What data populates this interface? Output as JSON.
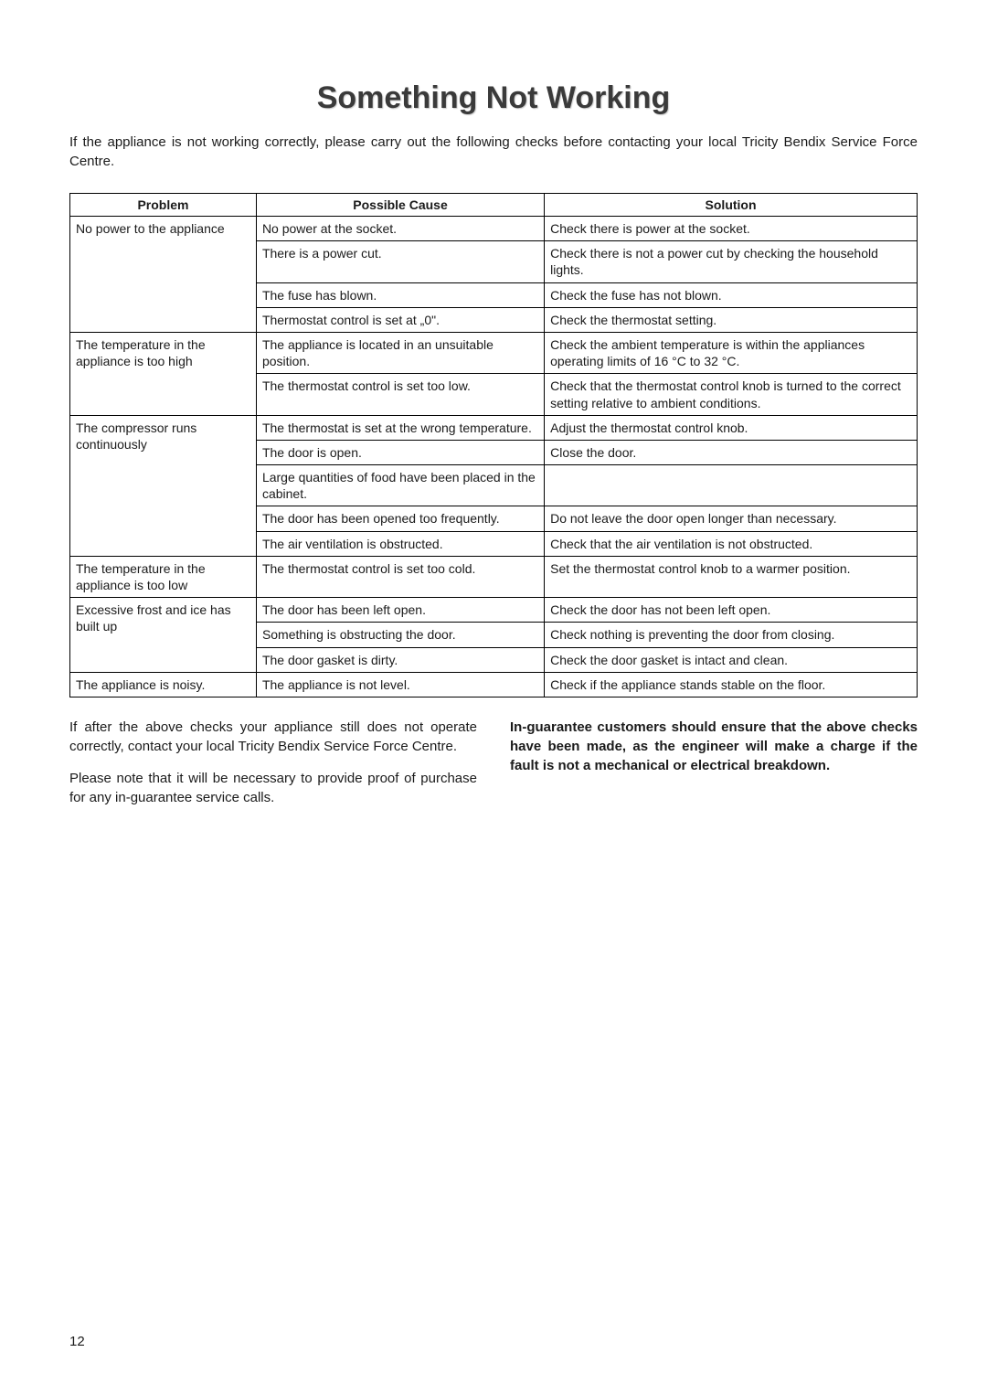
{
  "title": "Something Not Working",
  "intro": "If the appliance is not working correctly, please carry out the following checks before contacting your local Tricity Bendix Service Force Centre.",
  "table": {
    "headers": [
      "Problem",
      "Possible Cause",
      "Solution"
    ],
    "groups": [
      {
        "problem": "No power to the appliance",
        "rows": [
          {
            "cause": "No power at the socket.",
            "solution": "Check there is power at the socket."
          },
          {
            "cause": "There is a power cut.",
            "solution": "Check there is not a power cut by checking the household lights."
          },
          {
            "cause": "The fuse has blown.",
            "solution": "Check the fuse has not blown."
          },
          {
            "cause": "Thermostat control is set at „0\".",
            "solution": "Check the thermostat setting."
          }
        ]
      },
      {
        "problem": "The temperature in the appliance is too high",
        "rows": [
          {
            "cause": "The appliance is located in an unsuitable position.",
            "solution": "Check the ambient temperature is within the appliances operating limits of 16 °C to 32 °C."
          },
          {
            "cause": "The thermostat control is set too low.",
            "solution": "Check that the thermostat control knob is turned to the correct setting relative to ambient conditions."
          }
        ]
      },
      {
        "problem": "The compressor runs continuously",
        "rows": [
          {
            "cause": "The thermostat is set at the wrong temperature.",
            "solution": "Adjust the thermostat control knob."
          },
          {
            "cause": "The door is open.",
            "solution": "Close the door."
          },
          {
            "cause": "Large quantities of food have been placed in the cabinet.",
            "solution": ""
          },
          {
            "cause": "The door has been opened too frequently.",
            "solution": "Do not leave the door open longer than necessary."
          },
          {
            "cause": "The air ventilation is obstructed.",
            "solution": "Check that the air ventilation is not obstructed."
          }
        ]
      },
      {
        "problem": "The temperature in the appliance is too low",
        "rows": [
          {
            "cause": "The thermostat control is set too cold.",
            "solution": "Set the thermostat control knob to a warmer position."
          }
        ]
      },
      {
        "problem": "Excessive frost and ice has built up",
        "rows": [
          {
            "cause": "The door has been left open.",
            "solution": "Check the door has not been left open."
          },
          {
            "cause": "Something is obstructing the door.",
            "solution": "Check nothing is preventing the door from closing."
          },
          {
            "cause": "The door gasket is dirty.",
            "solution": "Check the door gasket is intact and clean."
          }
        ]
      },
      {
        "problem": "The appliance is noisy.",
        "rows": [
          {
            "cause": "The appliance is not level.",
            "solution": "Check if the appliance stands stable on the floor."
          }
        ]
      }
    ]
  },
  "footer": {
    "left": [
      "If after the above checks your appliance still does not operate correctly, contact your local Tricity Bendix Service Force Centre.",
      "Please note that it will be necessary to provide proof of purchase for any in-guarantee service calls."
    ],
    "right": [
      "In-guarantee customers should ensure that the above checks have been made, as the engineer will make a charge if the fault is not a mechanical or electrical breakdown."
    ]
  },
  "pageNumber": "12"
}
